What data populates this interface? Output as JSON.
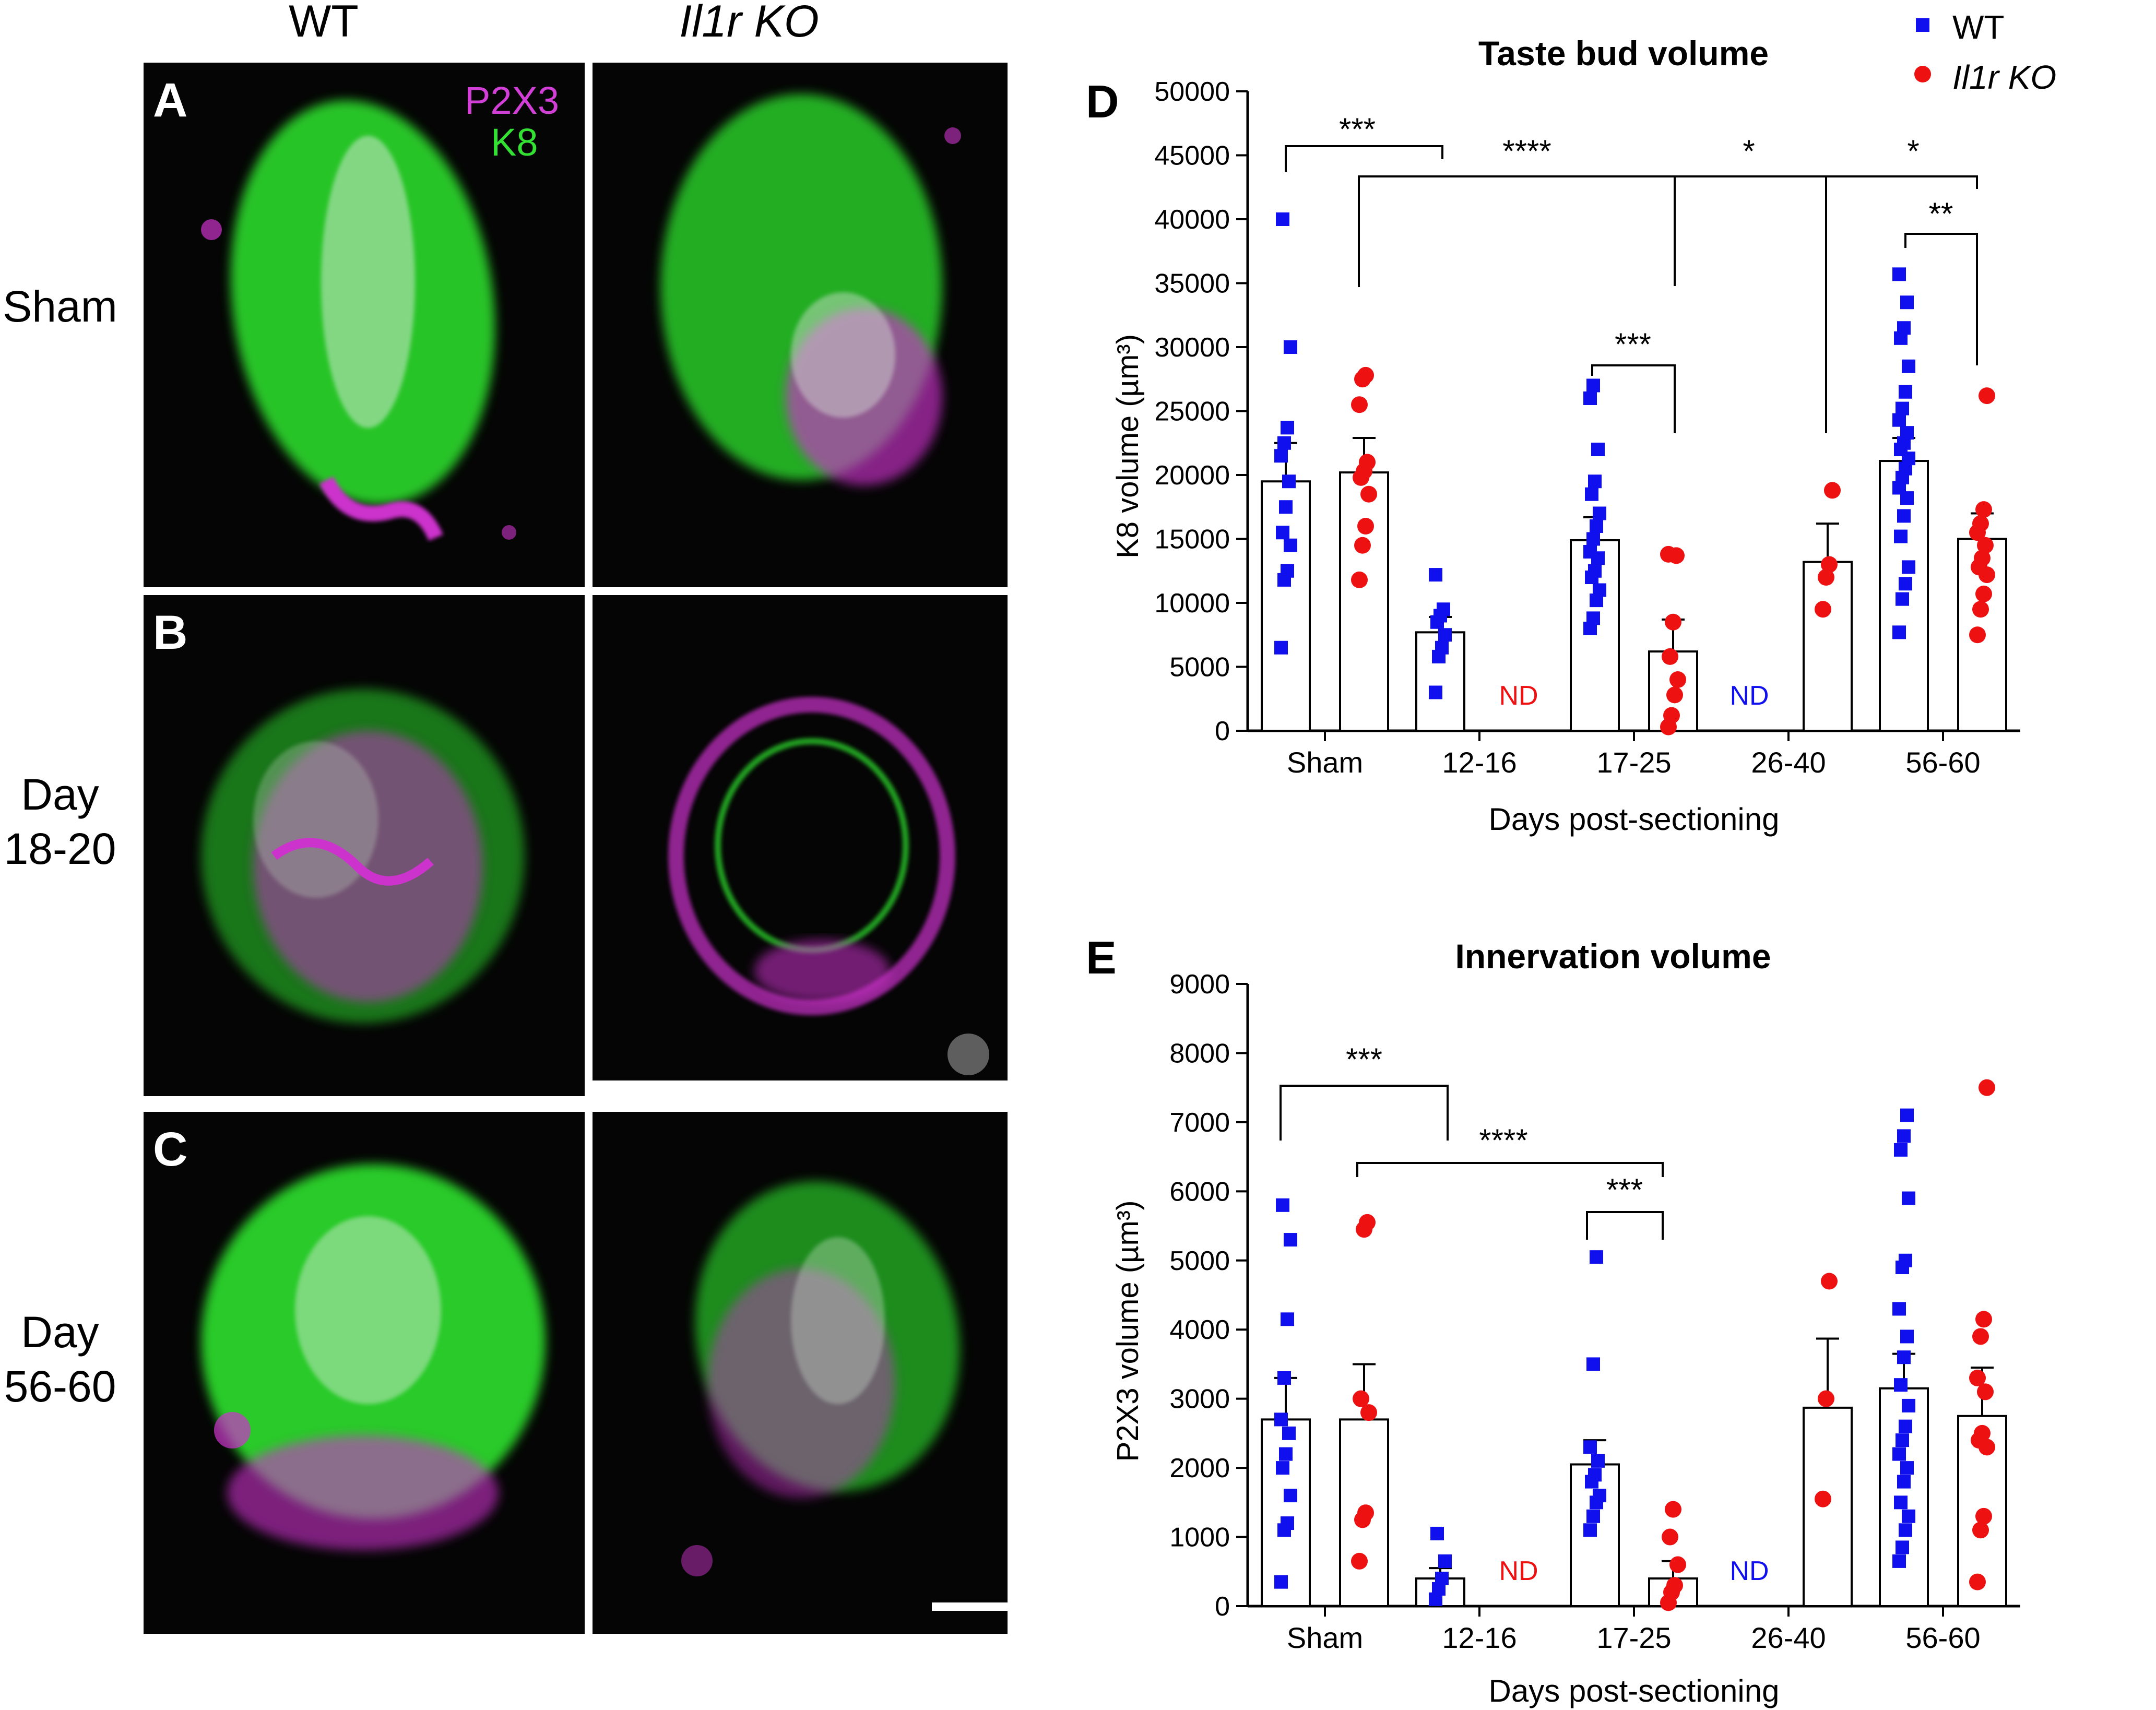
{
  "micrographs": {
    "columns": [
      "WT",
      "Il1r KO"
    ],
    "rows": [
      {
        "label_lines": [
          "Sham"
        ]
      },
      {
        "label_lines": [
          "Day",
          "18-20"
        ]
      },
      {
        "label_lines": [
          "Day",
          "56-60"
        ]
      }
    ],
    "panel_letters": [
      "A",
      "B",
      "C"
    ],
    "stain_labels": [
      {
        "text": "P2X3",
        "color": "#d23fd7"
      },
      {
        "text": "K8",
        "color": "#33e133"
      }
    ],
    "colors": {
      "k8": "#2ee62e",
      "p2x3": "#cc33cc",
      "background": "#050505"
    }
  },
  "legend": [
    {
      "text": "WT",
      "color": "#1010ee",
      "marker": "square"
    },
    {
      "text": "Il1r KO",
      "color": "#ee1111",
      "marker": "circle"
    }
  ],
  "chart_data": [
    {
      "type": "bar",
      "letter": "D",
      "title": "Taste bud volume",
      "xlabel": "Days post-sectioning",
      "ylabel": "K8 volume (µm³)",
      "ylim": [
        0,
        50000
      ],
      "yticks": [
        0,
        5000,
        10000,
        15000,
        20000,
        25000,
        30000,
        35000,
        40000,
        45000,
        50000
      ],
      "categories": [
        "Sham",
        "12-16",
        "17-25",
        "26-40",
        "56-60"
      ],
      "series": [
        {
          "name": "WT",
          "color": "#1010ee",
          "marker": "square",
          "means": [
            19500,
            7700,
            14900,
            null,
            21100
          ],
          "sem": [
            3000,
            1200,
            1800,
            null,
            1800
          ],
          "points": [
            [
              6500,
              11800,
              12500,
              14500,
              15500,
              17500,
              19500,
              21500,
              22500,
              23700,
              30000,
              40000
            ],
            [
              3000,
              5800,
              6500,
              7500,
              8500,
              9000,
              9500,
              12200
            ],
            [
              8000,
              8800,
              10200,
              11000,
              12000,
              12500,
              13500,
              14000,
              15000,
              16000,
              17000,
              18500,
              19500,
              22000,
              26000,
              27000
            ],
            [],
            [
              7700,
              10300,
              11500,
              12800,
              15200,
              16800,
              18200,
              19000,
              19800,
              20500,
              21300,
              22000,
              22500,
              23300,
              24300,
              25200,
              26500,
              28500,
              30700,
              31500,
              33500,
              35700
            ]
          ]
        },
        {
          "name": "Il1r KO",
          "color": "#ee1111",
          "marker": "circle",
          "means": [
            20200,
            null,
            6200,
            13200,
            15000
          ],
          "sem": [
            2700,
            null,
            2500,
            3000,
            2000
          ],
          "points": [
            [
              11800,
              14500,
              16000,
              18500,
              19800,
              20300,
              21000,
              25500,
              27500,
              27800
            ],
            [],
            [
              300,
              1200,
              2800,
              4000,
              5800,
              8500,
              13700,
              13800
            ],
            [
              9500,
              12000,
              13000,
              18800
            ],
            [
              7500,
              9500,
              10700,
              12200,
              12800,
              13500,
              14500,
              15500,
              16200,
              17300,
              26200
            ]
          ]
        }
      ],
      "nd_labels": [
        {
          "category": "12-16",
          "series": "Il1r KO",
          "text": "ND",
          "color": "#ee1111"
        },
        {
          "category": "26-40",
          "series": "WT",
          "text": "ND",
          "color": "#1010ee"
        }
      ],
      "annotations": [
        {
          "text": "***"
        },
        {
          "text": "****"
        },
        {
          "text": "*"
        },
        {
          "text": "*"
        },
        {
          "text": "**"
        },
        {
          "text": "***"
        }
      ]
    },
    {
      "type": "bar",
      "letter": "E",
      "title": "Innervation volume",
      "xlabel": "Days post-sectioning",
      "ylabel": "P2X3 volume (µm³)",
      "ylim": [
        0,
        9000
      ],
      "yticks": [
        0,
        1000,
        2000,
        3000,
        4000,
        5000,
        6000,
        7000,
        8000,
        9000
      ],
      "categories": [
        "Sham",
        "12-16",
        "17-25",
        "26-40",
        "56-60"
      ],
      "series": [
        {
          "name": "WT",
          "color": "#1010ee",
          "marker": "square",
          "means": [
            2700,
            400,
            2050,
            null,
            3150
          ],
          "sem": [
            600,
            150,
            350,
            null,
            500
          ],
          "points": [
            [
              350,
              1100,
              1200,
              1600,
              2000,
              2200,
              2500,
              2700,
              3300,
              4150,
              5300,
              5800
            ],
            [
              100,
              250,
              400,
              650,
              1050
            ],
            [
              1100,
              1300,
              1500,
              1600,
              1800,
              1900,
              2100,
              2300,
              3500,
              5050
            ],
            [],
            [
              650,
              850,
              1100,
              1300,
              1500,
              1800,
              2000,
              2200,
              2400,
              2600,
              2900,
              3200,
              3600,
              3900,
              4300,
              4900,
              5000,
              5900,
              6600,
              6800,
              7100
            ]
          ]
        },
        {
          "name": "Il1r KO",
          "color": "#ee1111",
          "marker": "circle",
          "means": [
            2700,
            null,
            400,
            2870,
            2750
          ],
          "sem": [
            800,
            null,
            250,
            1000,
            700
          ],
          "points": [
            [
              650,
              1250,
              1350,
              2800,
              3000,
              5450,
              5550
            ],
            [],
            [
              50,
              200,
              300,
              600,
              1000,
              1400
            ],
            [
              1550,
              3000,
              4700
            ],
            [
              350,
              1100,
              1300,
              2300,
              2400,
              2500,
              3100,
              3300,
              3900,
              4150,
              7500
            ]
          ]
        }
      ],
      "nd_labels": [
        {
          "category": "12-16",
          "series": "Il1r KO",
          "text": "ND",
          "color": "#ee1111"
        },
        {
          "category": "26-40",
          "series": "WT",
          "text": "ND",
          "color": "#1010ee"
        }
      ],
      "annotations": [
        {
          "text": "***"
        },
        {
          "text": "****"
        },
        {
          "text": "***"
        }
      ]
    }
  ]
}
